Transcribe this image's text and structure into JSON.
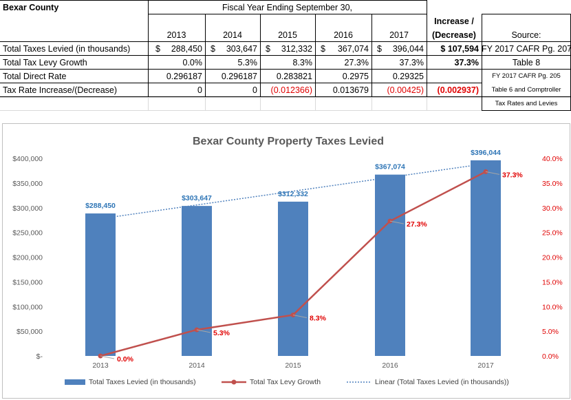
{
  "sheet": {
    "county": "Bexar County",
    "fiscal_header": "Fiscal Year Ending September 30,",
    "years": [
      "2013",
      "2014",
      "2015",
      "2016",
      "2017"
    ],
    "increase_header_1": "Increase /",
    "increase_header_2": "(Decrease)",
    "source_header": "Source:",
    "rows": [
      {
        "label": "Total Taxes Levied (in thousands)",
        "cells": [
          {
            "cur": "$",
            "val": "288,450"
          },
          {
            "cur": "$",
            "val": "303,647"
          },
          {
            "cur": "$",
            "val": "312,332"
          },
          {
            "cur": "$",
            "val": "367,074"
          },
          {
            "cur": "$",
            "val": "396,044"
          }
        ],
        "inc": "$ 107,594",
        "source": "FY 2017 CAFR Pg. 207"
      },
      {
        "label": "Total Tax Levy Growth",
        "cells": [
          {
            "val": "0.0%"
          },
          {
            "val": "5.3%"
          },
          {
            "val": "8.3%"
          },
          {
            "val": "27.3%"
          },
          {
            "val": "37.3%"
          }
        ],
        "inc": "37.3%",
        "source": "Table 8"
      },
      {
        "label": "Total Direct Rate",
        "cells": [
          {
            "val": "0.296187"
          },
          {
            "val": "0.296187"
          },
          {
            "val": "0.283821"
          },
          {
            "val": "0.2975"
          },
          {
            "val": "0.29325"
          }
        ],
        "inc": "",
        "source": "FY 2017 CAFR Pg. 205"
      },
      {
        "label": "Tax Rate Increase/(Decrease)",
        "cells": [
          {
            "val": "0"
          },
          {
            "val": "0"
          },
          {
            "val": "(0.012366)"
          },
          {
            "val": "0.013679"
          },
          {
            "val": "(0.00425)"
          }
        ],
        "inc": "(0.002937)",
        "source": "Table 6 and Comptroller"
      }
    ],
    "source_extra": "Tax Rates and Levies"
  },
  "chart_data": {
    "type": "bar",
    "title": "Bexar County Property Taxes Levied",
    "categories": [
      "2013",
      "2014",
      "2015",
      "2016",
      "2017"
    ],
    "series": [
      {
        "name": "Total Taxes Levied (in thousands)",
        "type": "bar",
        "axis": "left",
        "values": [
          288450,
          303647,
          312332,
          367074,
          396044
        ],
        "labels": [
          "$288,450",
          "$303,647",
          "$312,332",
          "$367,074",
          "$396,044"
        ],
        "color": "#4f81bd"
      },
      {
        "name": "Total Tax Levy Growth",
        "type": "line",
        "axis": "right",
        "values": [
          0.0,
          5.3,
          8.3,
          27.3,
          37.3
        ],
        "labels": [
          "0.0%",
          "5.3%",
          "8.3%",
          "27.3%",
          "37.3%"
        ],
        "color": "#c0504d"
      },
      {
        "name": "Linear (Total Taxes Levied (in thousands))",
        "type": "trendline",
        "axis": "left",
        "color": "#4f81bd"
      }
    ],
    "y_left": {
      "min": 0,
      "max": 400000,
      "step": 50000,
      "ticks": [
        "$-",
        "$50,000",
        "$100,000",
        "$150,000",
        "$200,000",
        "$250,000",
        "$300,000",
        "$350,000",
        "$400,000"
      ]
    },
    "y_right": {
      "min": 0,
      "max": 40,
      "step": 5,
      "ticks": [
        "0.0%",
        "5.0%",
        "10.0%",
        "15.0%",
        "20.0%",
        "25.0%",
        "30.0%",
        "35.0%",
        "40.0%"
      ],
      "color": "#e00000"
    },
    "grid": false,
    "legend_position": "bottom"
  }
}
